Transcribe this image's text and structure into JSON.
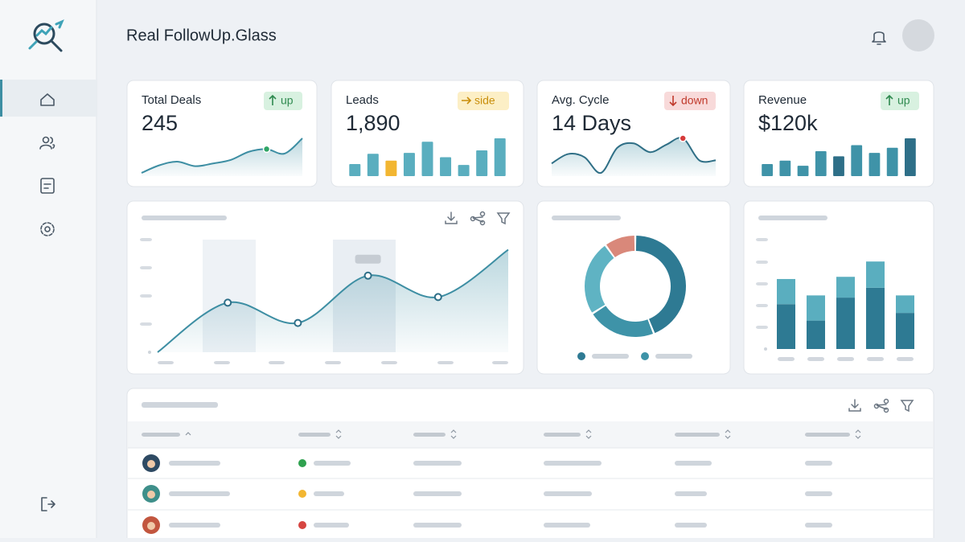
{
  "header": {
    "title": "Real FollowUp.Glass"
  },
  "kpis": [
    {
      "label": "Total Deals",
      "value": "245",
      "trend": "up",
      "badge_color": "#2f8a4f",
      "badge_bg": "#d8f1e0",
      "spark": {
        "type": "line",
        "color": "#3d8ea3",
        "values": [
          5,
          22,
          30,
          20,
          26,
          34,
          52,
          58,
          48,
          82
        ]
      }
    },
    {
      "label": "Leads",
      "value": "1,890",
      "trend": "side",
      "badge_color": "#c98e0c",
      "badge_bg": "#fcefc6",
      "spark": {
        "type": "bar",
        "values": [
          14,
          26,
          18,
          27,
          40,
          22,
          13,
          30,
          44
        ],
        "colors": [
          "#5aaebf",
          "#5aaebf",
          "#f2b632",
          "#5aaebf",
          "#5aaebf",
          "#5aaebf",
          "#5aaebf",
          "#5aaebf",
          "#5aaebf"
        ]
      }
    },
    {
      "label": "Avg. Cycle",
      "value": "14 Days",
      "trend": "down",
      "badge_color": "#c0392b",
      "badge_bg": "#f8dada",
      "spark": {
        "type": "line",
        "color": "#2f6f86",
        "values": [
          30,
          45,
          40,
          15,
          55,
          62,
          48,
          60,
          70,
          35,
          35
        ]
      }
    },
    {
      "label": "Revenue",
      "value": "$120k",
      "trend": "up",
      "badge_color": "#2f8a4f",
      "badge_bg": "#d8f1e0",
      "spark": {
        "type": "bar",
        "values": [
          14,
          18,
          12,
          29,
          23,
          36,
          27,
          33,
          44
        ],
        "colors": [
          "#3f93a8",
          "#3f93a8",
          "#3f93a8",
          "#3f93a8",
          "#2e6f88",
          "#3f93a8",
          "#3f93a8",
          "#3f93a8",
          "#2e6f88"
        ]
      }
    }
  ],
  "trend_chart": {
    "type": "line",
    "color": "#3d8ea3",
    "values": [
      0,
      44,
      26,
      68,
      49,
      91
    ],
    "ylim": [
      0,
      100
    ]
  },
  "donut": {
    "type": "pie",
    "values": [
      44,
      22,
      24,
      10
    ],
    "colors": [
      "#2e7a93",
      "#3e93a8",
      "#5fb3c3",
      "#d9887a"
    ]
  },
  "stacked": {
    "type": "bar",
    "ylim": [
      0,
      100
    ],
    "series": [
      {
        "color": "#2e7a93",
        "values": [
          41,
          26,
          47,
          56,
          33
        ]
      },
      {
        "color": "#5aaebf",
        "values": [
          23,
          23,
          19,
          24,
          16
        ]
      }
    ]
  }
}
